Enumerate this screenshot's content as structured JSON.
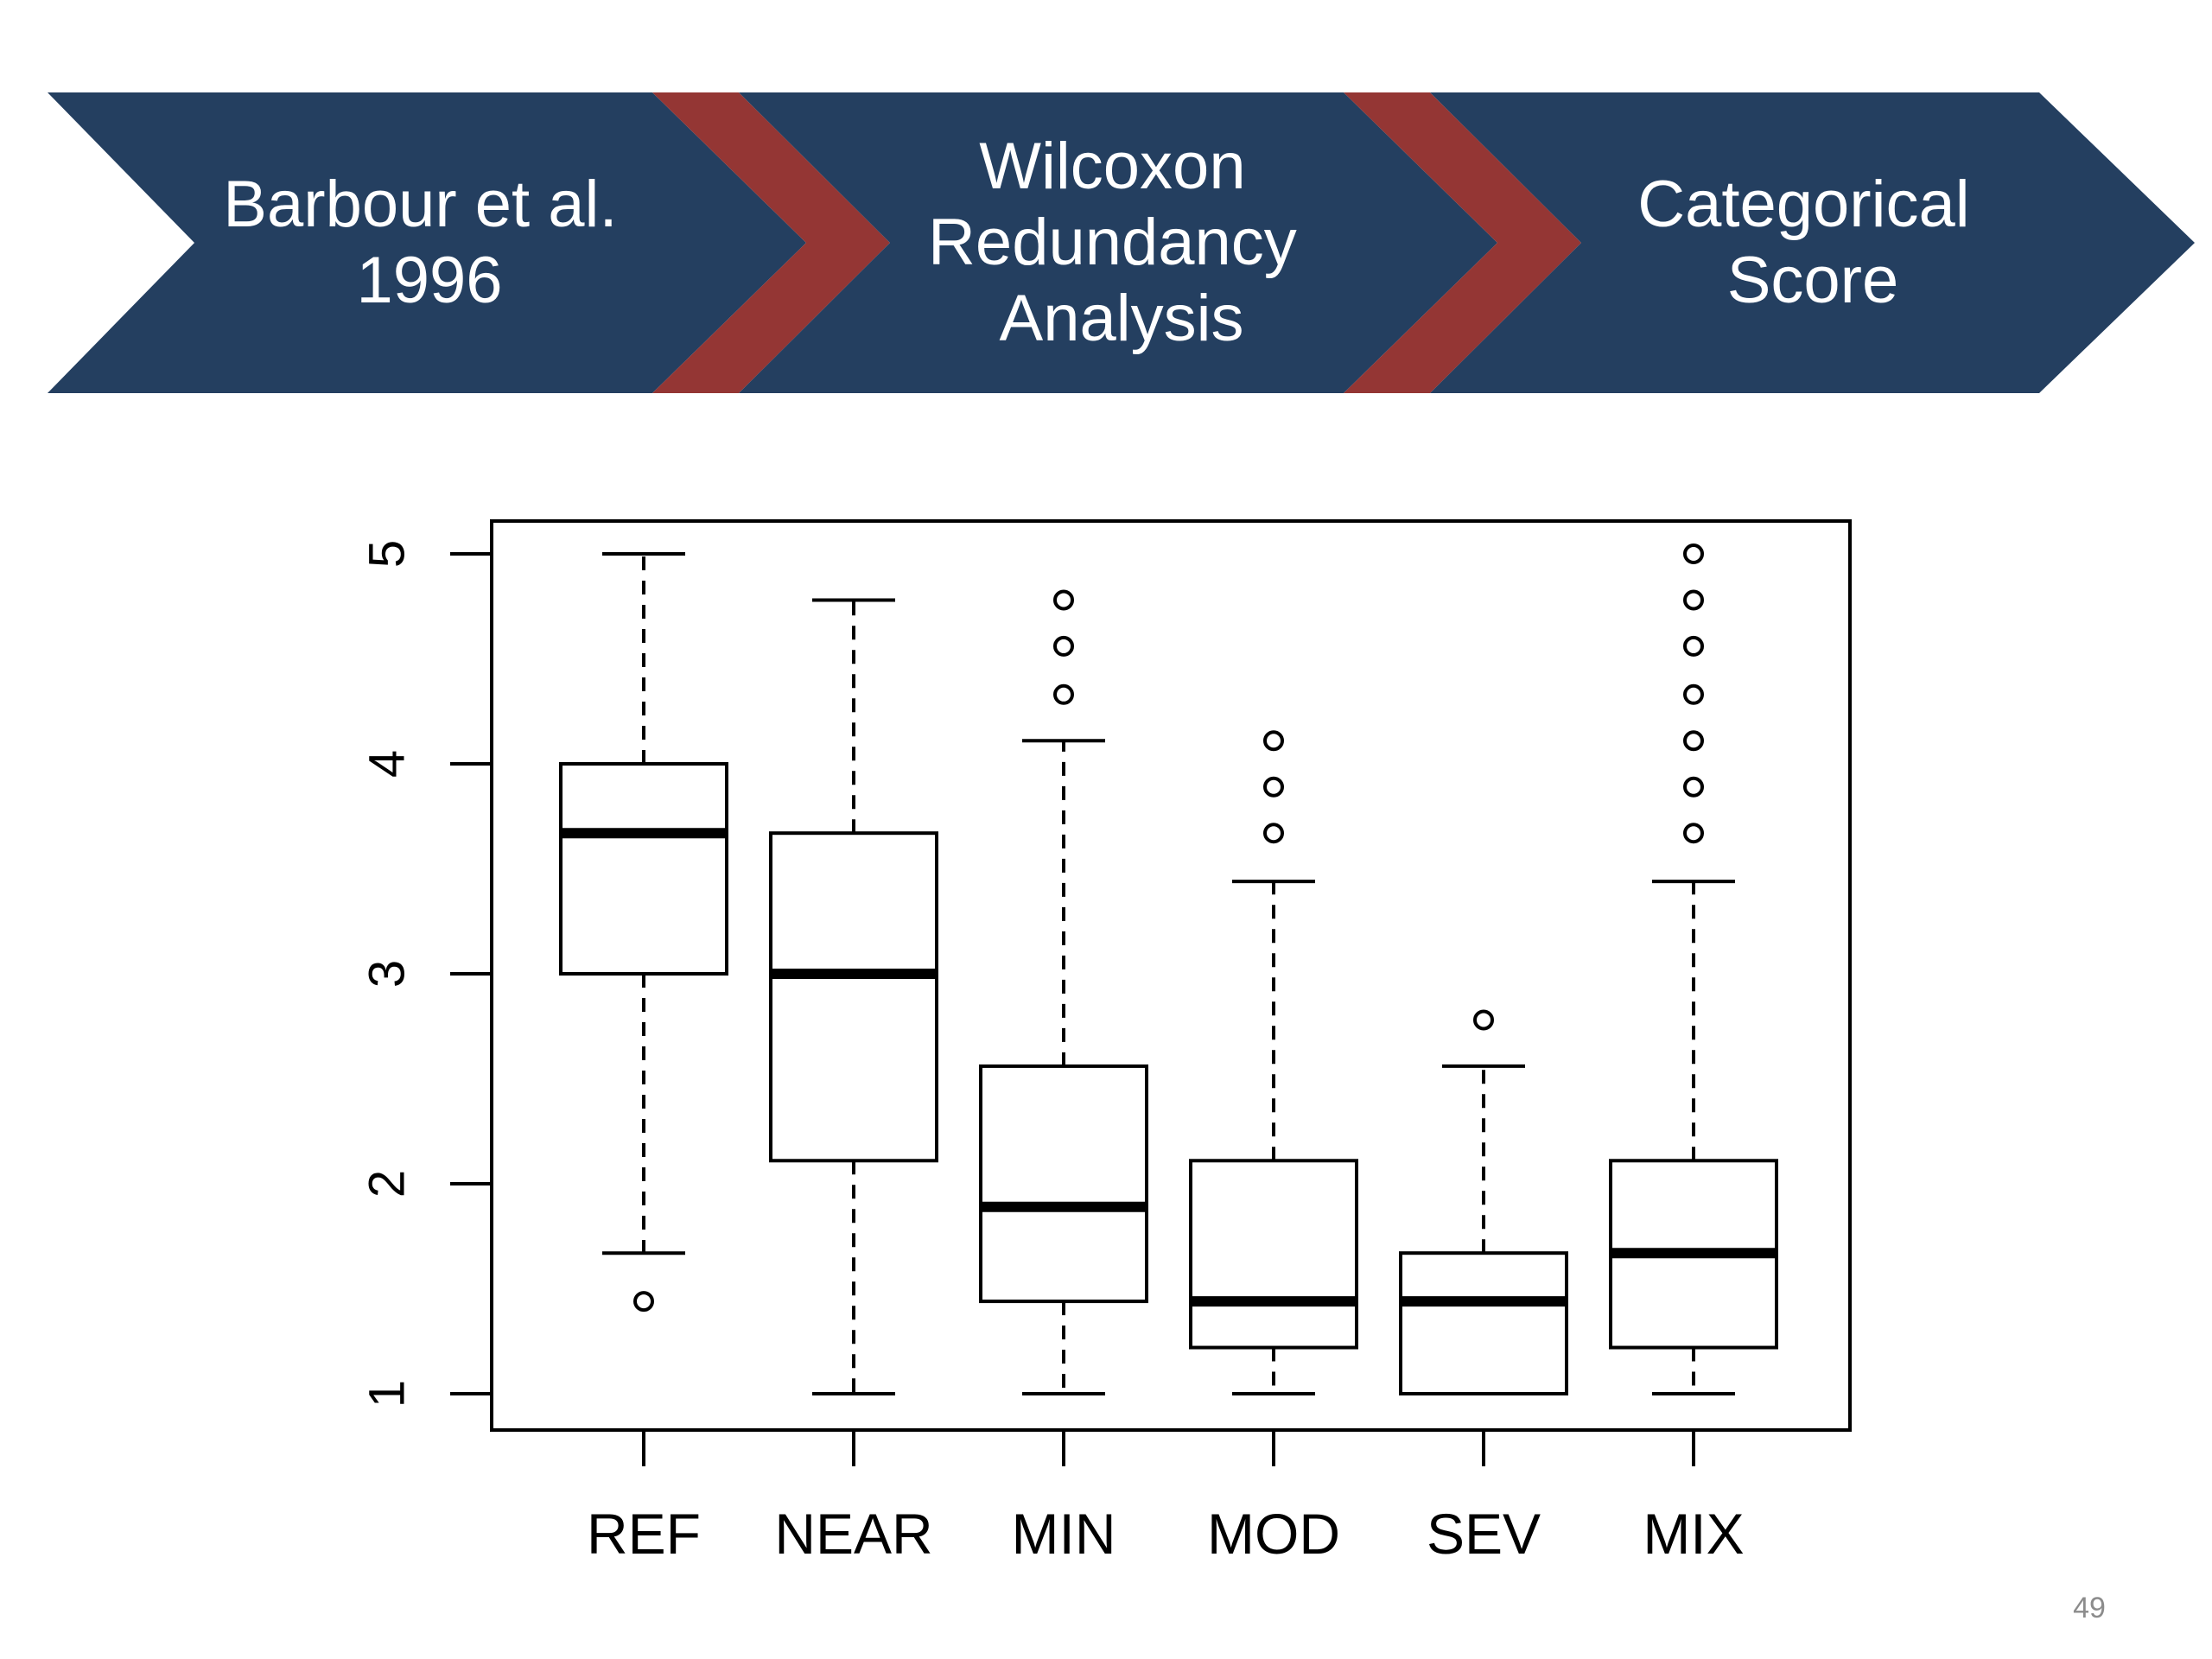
{
  "colors": {
    "chevron_fill": "#243f60",
    "separator_fill": "#943634",
    "chevron_text": "#ffffff",
    "plot_ink": "#000000",
    "page_number": "#8c8c8c"
  },
  "process_flow": {
    "steps": [
      {
        "lines": [
          "Barbour et al.",
          "1996"
        ]
      },
      {
        "lines": [
          "Wilcoxon",
          "Redundancy",
          "Analysis"
        ]
      },
      {
        "lines": [
          "Categorical",
          "Score"
        ]
      }
    ]
  },
  "chart_data": {
    "type": "box",
    "title": "",
    "xlabel": "",
    "ylabel": "",
    "ylim": [
      1,
      5
    ],
    "yticks": [
      "1",
      "2",
      "3",
      "4",
      "5"
    ],
    "y_tick_label_rotation": "vertical",
    "grid": false,
    "legend": "none",
    "categories": [
      "REF",
      "NEAR",
      "MIN",
      "MOD",
      "SEV",
      "MIX"
    ],
    "boxes": [
      {
        "category": "REF",
        "whisker_low": 1.67,
        "q1": 3.0,
        "median": 3.67,
        "q3": 4.0,
        "whisker_high": 5.0,
        "outliers": [
          1.44
        ]
      },
      {
        "category": "NEAR",
        "whisker_low": 1.0,
        "q1": 2.11,
        "median": 3.0,
        "q3": 3.67,
        "whisker_high": 4.78,
        "outliers": []
      },
      {
        "category": "MIN",
        "whisker_low": 1.0,
        "q1": 1.44,
        "median": 1.89,
        "q3": 2.56,
        "whisker_high": 4.11,
        "outliers": [
          4.33,
          4.56,
          4.78
        ]
      },
      {
        "category": "MOD",
        "whisker_low": 1.0,
        "q1": 1.22,
        "median": 1.44,
        "q3": 2.11,
        "whisker_high": 3.44,
        "outliers": [
          3.67,
          3.89,
          4.11
        ]
      },
      {
        "category": "SEV",
        "whisker_low": 1.0,
        "q1": 1.0,
        "median": 1.44,
        "q3": 1.67,
        "whisker_high": 2.56,
        "outliers": [
          2.78
        ]
      },
      {
        "category": "MIX",
        "whisker_low": 1.0,
        "q1": 1.22,
        "median": 1.67,
        "q3": 2.11,
        "whisker_high": 3.44,
        "outliers": [
          3.67,
          3.89,
          4.11,
          4.33,
          4.56,
          4.78,
          5.0
        ]
      }
    ]
  },
  "footer": {
    "page_number": "49"
  }
}
